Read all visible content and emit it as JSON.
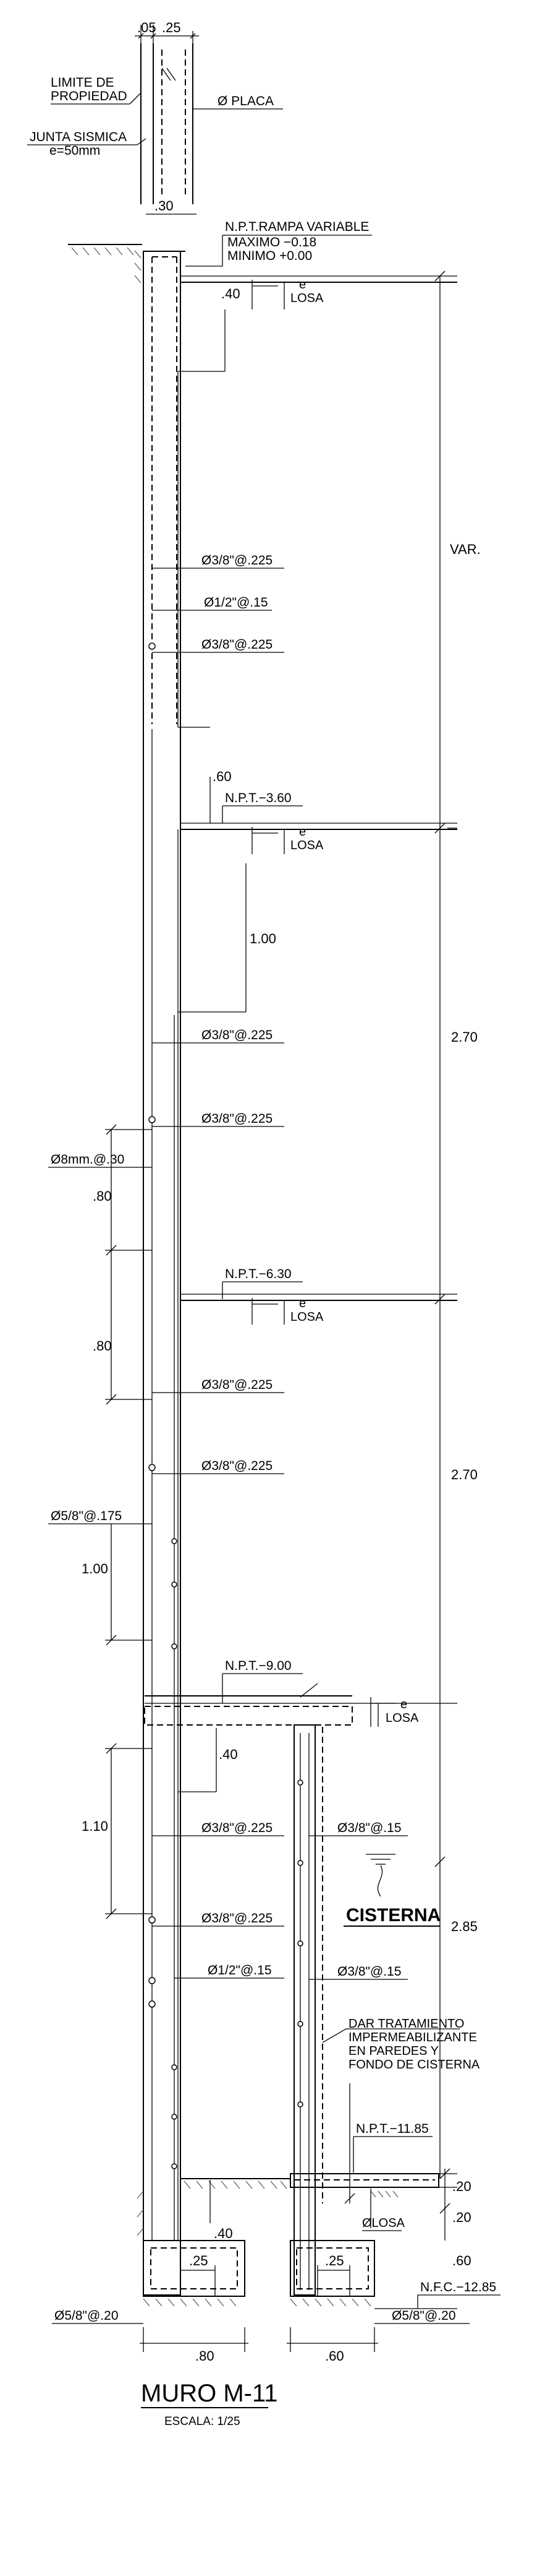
{
  "drawing": {
    "title": "MURO M-11",
    "scale": "ESCALA: 1/25"
  },
  "top_labels": {
    "dim_05": ".05",
    "dim_25": ".25",
    "limite": "LIMITE  DE",
    "propiedad": "PROPIEDAD",
    "placa": "Ø  PLACA",
    "junta": "JUNTA  SISMICA",
    "junta_e": "e=50mm",
    "dim_30": ".30"
  },
  "levels": {
    "rampa_title": "N.P.T.RAMPA VARIABLE",
    "rampa_max": "MAXIMO  −0.18",
    "rampa_min": "MINIMO  +0.00",
    "npt_360": "N.P.T.−3.60",
    "npt_630": "N.P.T.−6.30",
    "npt_900": "N.P.T.−9.00",
    "npt_1185": "N.P.T.−11.85",
    "nfc_1285": "N.F.C.−12.85"
  },
  "losa": {
    "e": "e",
    "label": "LOSA",
    "slab_label": "ØLOSA"
  },
  "rebar": {
    "r1": "Ø3/8\"@.225",
    "r2": "Ø1/2\"@.15",
    "r3": "Ø3/8\"@.225",
    "r4": "Ø3/8\"@.225",
    "r5": "Ø3/8\"@.225",
    "r6": "Ø3/8\"@.225",
    "r7": "Ø3/8\"@.225",
    "r8": "Ø3/8\"@.225",
    "r9": "Ø3/8\"@.225",
    "r10": "Ø1/2\"@.15",
    "c1": "Ø3/8\"@.15",
    "c2": "Ø3/8\"@.15",
    "left_8mm": "Ø8mm.@.30",
    "left_58": "Ø5/8\"@.175",
    "foot_left": "Ø5/8\"@.20",
    "foot_right": "Ø5/8\"@.20"
  },
  "dims_inner": {
    "d40a": ".40",
    "d60": ".60",
    "d100": "1.00",
    "d40b": ".40",
    "d40c": ".40",
    "d25a": ".25",
    "d25b": ".25"
  },
  "dims_left": {
    "d80a": ".80",
    "d80b": ".80",
    "d100": "1.00",
    "d110": "1.10"
  },
  "dims_right": {
    "var": "VAR.",
    "d270a": "2.70",
    "d270b": "2.70",
    "d285": "2.85",
    "d20a": ".20",
    "d20b": ".20",
    "d60": ".60"
  },
  "dims_bottom": {
    "d80": ".80",
    "d60": ".60"
  },
  "cisterna": {
    "title": "CISTERNA",
    "note1": "DAR  TRATAMIENTO",
    "note2": "IMPERMEABILIZANTE",
    "note3": "EN  PAREDES  Y",
    "note4": "FONDO  DE  CISTERNA"
  }
}
